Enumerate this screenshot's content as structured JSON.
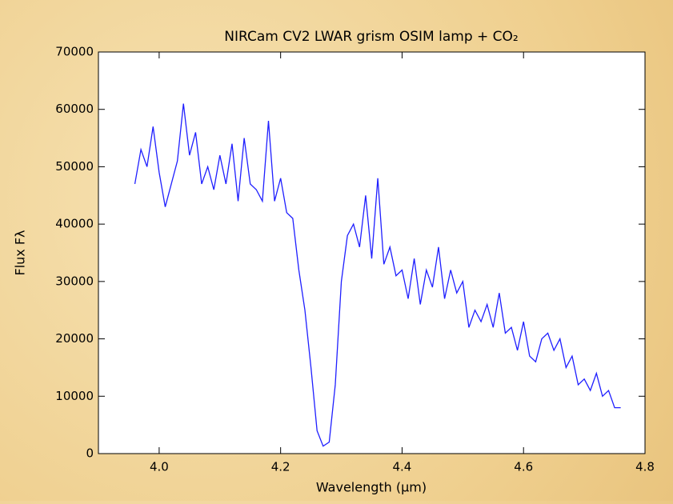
{
  "chart_data": {
    "type": "line",
    "title": "NIRCam CV2 LWAR grism OSIM lamp + CO₂",
    "x_label": "Wavelength (μm)",
    "y_label": "Flux Fλ",
    "x": [
      3.96,
      3.97,
      3.98,
      3.99,
      4.0,
      4.01,
      4.02,
      4.03,
      4.04,
      4.05,
      4.06,
      4.07,
      4.08,
      4.09,
      4.1,
      4.11,
      4.12,
      4.13,
      4.14,
      4.15,
      4.16,
      4.17,
      4.18,
      4.19,
      4.2,
      4.21,
      4.22,
      4.23,
      4.24,
      4.25,
      4.26,
      4.27,
      4.28,
      4.29,
      4.3,
      4.31,
      4.32,
      4.33,
      4.34,
      4.35,
      4.36,
      4.37,
      4.38,
      4.39,
      4.4,
      4.41,
      4.42,
      4.43,
      4.44,
      4.45,
      4.46,
      4.47,
      4.48,
      4.49,
      4.5,
      4.51,
      4.52,
      4.53,
      4.54,
      4.55,
      4.56,
      4.57,
      4.58,
      4.59,
      4.6,
      4.61,
      4.62,
      4.63,
      4.64,
      4.65,
      4.66,
      4.67,
      4.68,
      4.69,
      4.7,
      4.71,
      4.72,
      4.73,
      4.74,
      4.75,
      4.76
    ],
    "series": [
      {
        "color": "#1f1fff",
        "values": [
          47000,
          53000,
          50000,
          57000,
          49000,
          43000,
          47000,
          51000,
          61000,
          52000,
          56000,
          47000,
          50000,
          46000,
          52000,
          47000,
          54000,
          44000,
          55000,
          47000,
          46000,
          44000,
          58000,
          44000,
          48000,
          42000,
          41000,
          32000,
          25000,
          15000,
          4000,
          1300,
          2000,
          12000,
          30000,
          38000,
          40000,
          36000,
          45000,
          34000,
          48000,
          33000,
          36000,
          31000,
          32000,
          27000,
          34000,
          26000,
          32000,
          29000,
          36000,
          27000,
          32000,
          28000,
          30000,
          22000,
          25000,
          23000,
          26000,
          22000,
          28000,
          21000,
          22000,
          18000,
          23000,
          17000,
          16000,
          20000,
          21000,
          18000,
          20000,
          15000,
          17000,
          12000,
          13000,
          11000,
          14000,
          10000,
          11000,
          8000,
          8000
        ]
      }
    ],
    "xlim": [
      3.9,
      4.8
    ],
    "ylim": [
      0,
      70000
    ],
    "xticks": [
      {
        "value": 4,
        "label": "4.0"
      },
      4.2,
      4.4,
      4.6,
      4.8
    ],
    "yticks": [
      0,
      10000,
      20000,
      30000,
      40000,
      50000,
      60000,
      70000
    ],
    "grid": false
  }
}
